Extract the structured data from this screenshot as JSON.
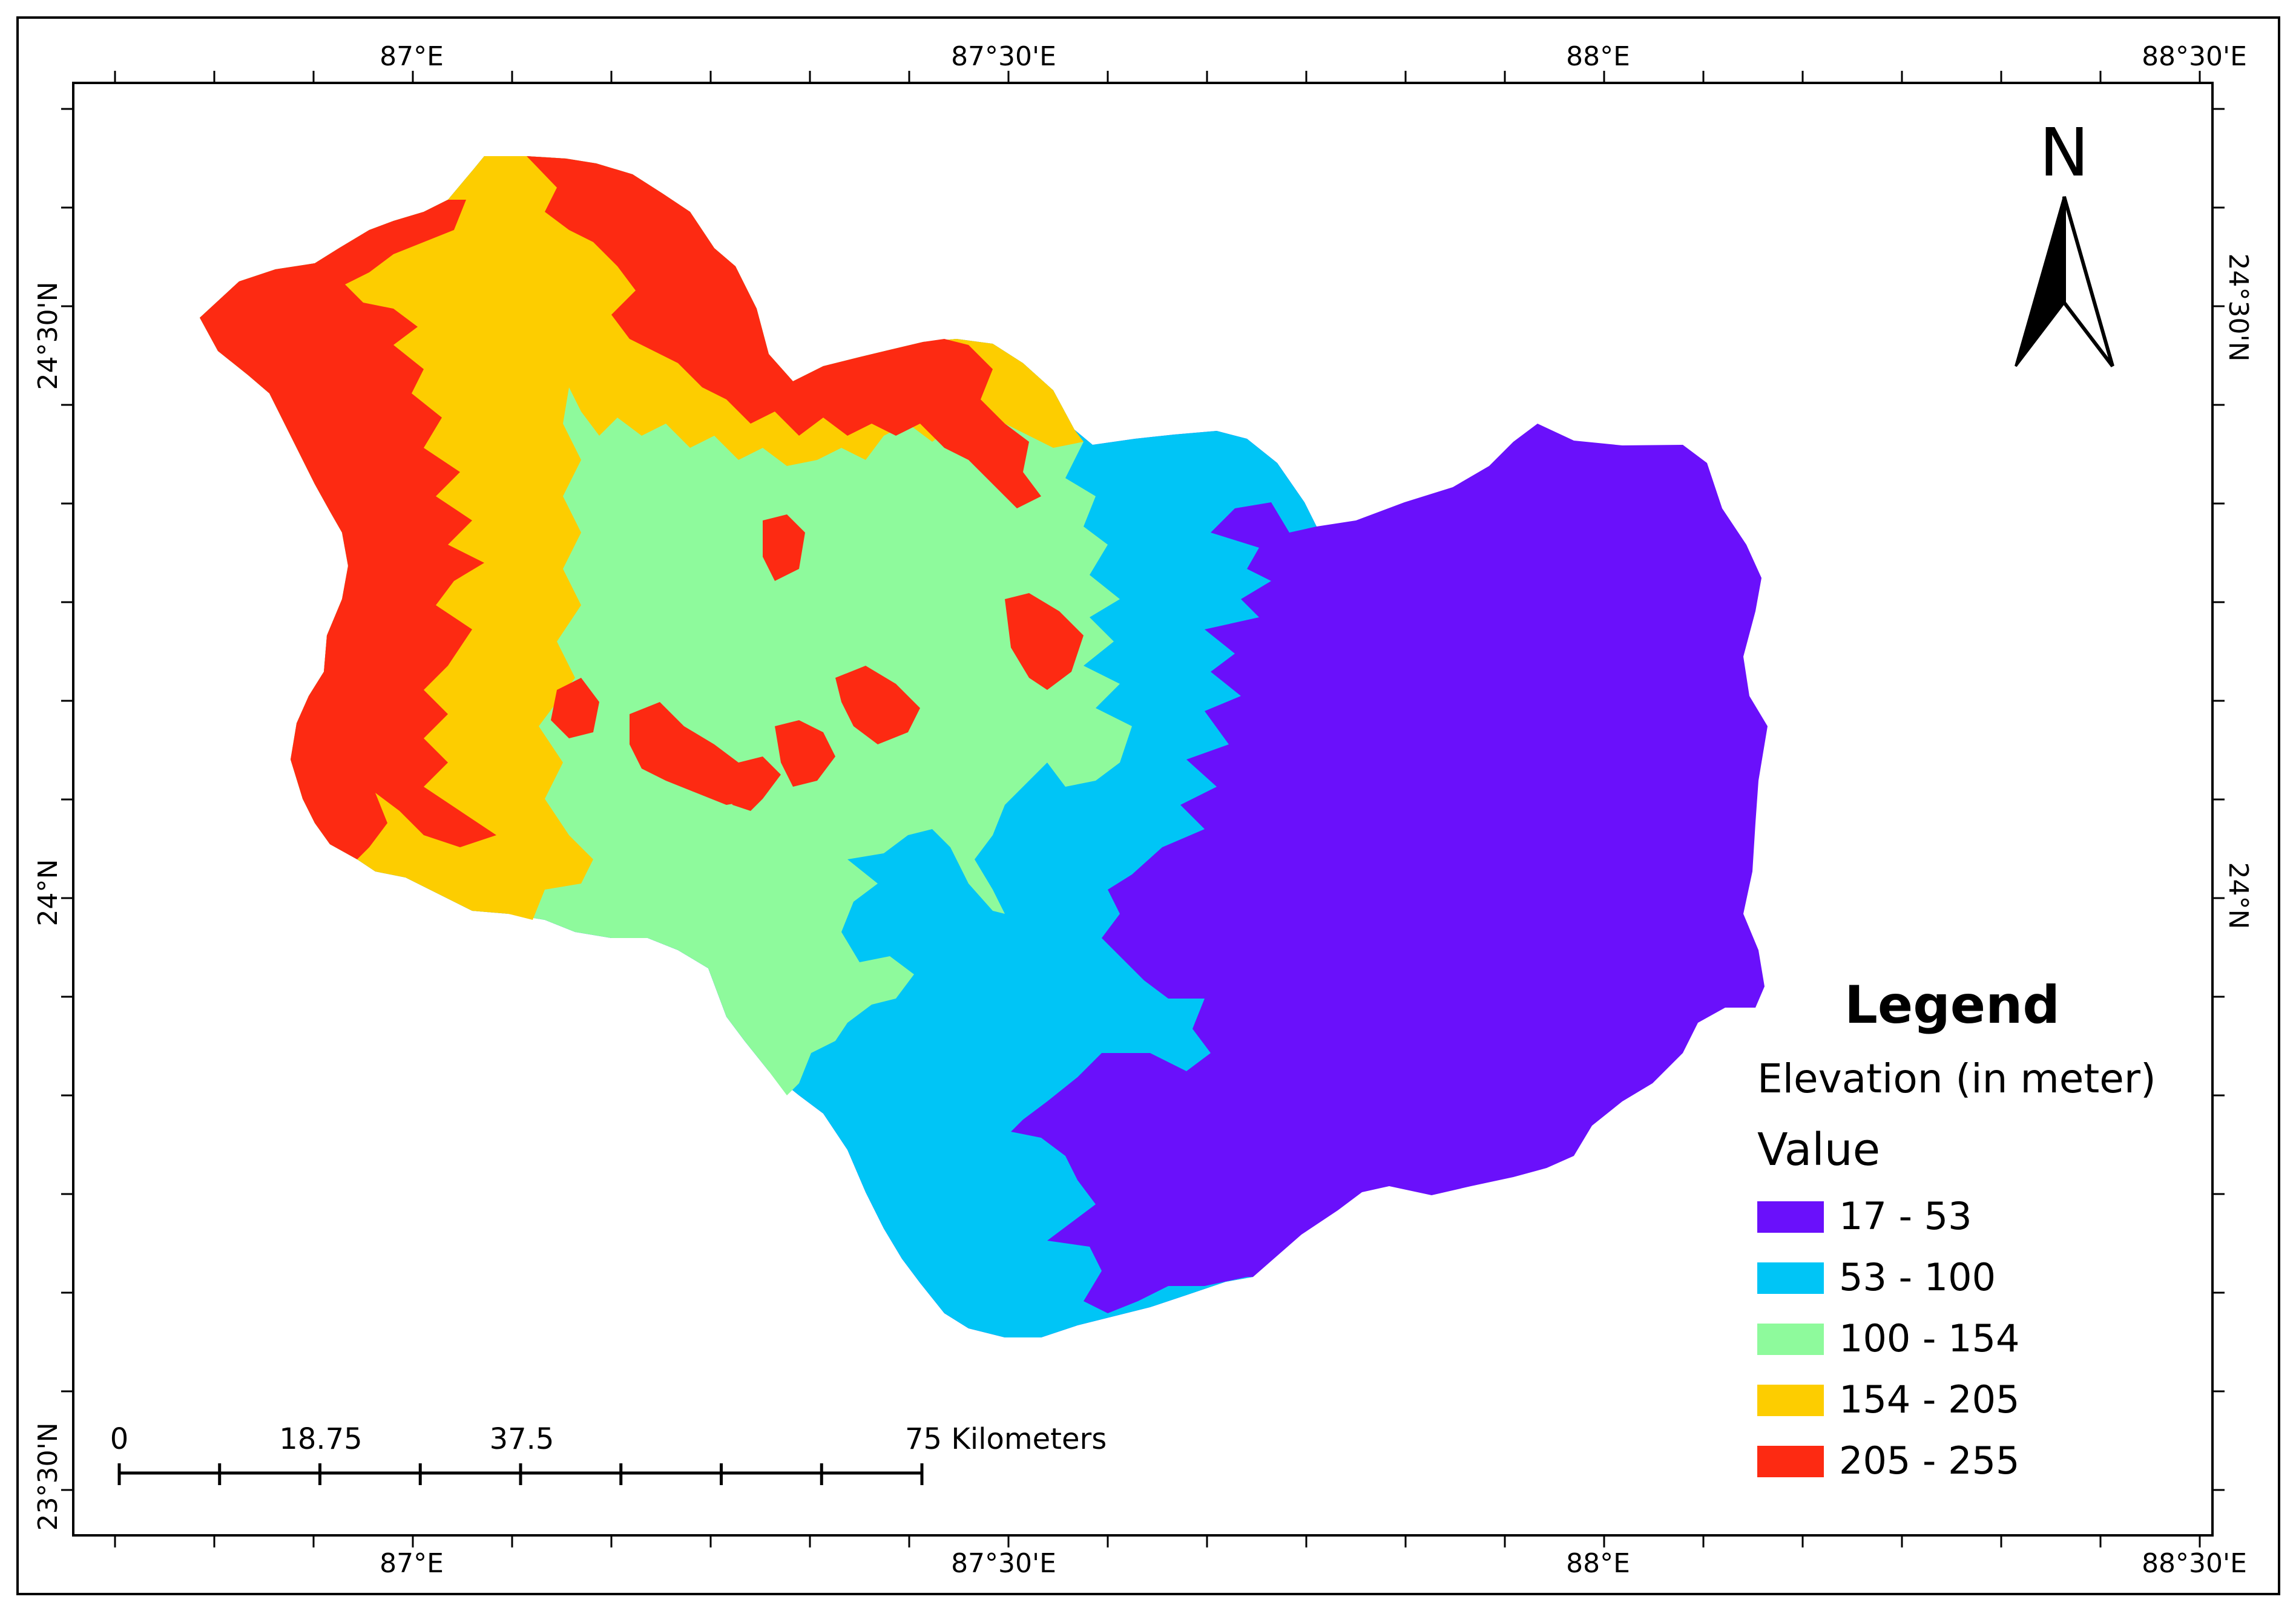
{
  "graticule": {
    "top_labels": [
      "87°E",
      "87°30'E",
      "88°E",
      "88°30'E"
    ],
    "bottom_labels": [
      "87°E",
      "87°30'E",
      "88°E",
      "88°30'E"
    ],
    "left_labels": [
      "24°30'N",
      "24°N",
      "23°30'N"
    ],
    "right_labels": [
      "24°30'N",
      "24°N"
    ]
  },
  "north_arrow": {
    "label": "N"
  },
  "legend": {
    "title": "Legend",
    "layer": "Elevation (in meter)",
    "field": "Value",
    "classes": [
      {
        "label": "17 - 53",
        "color": "#6a10fb"
      },
      {
        "label": "53 - 100",
        "color": "#00c5f6"
      },
      {
        "label": "100 - 154",
        "color": "#8efa9c"
      },
      {
        "label": "154 - 205",
        "color": "#fdcd00"
      },
      {
        "label": "205 - 255",
        "color": "#fd2a12"
      }
    ]
  },
  "scale_bar": {
    "labels": [
      "0",
      "18.75",
      "37.5",
      "75 Kilometers"
    ]
  }
}
